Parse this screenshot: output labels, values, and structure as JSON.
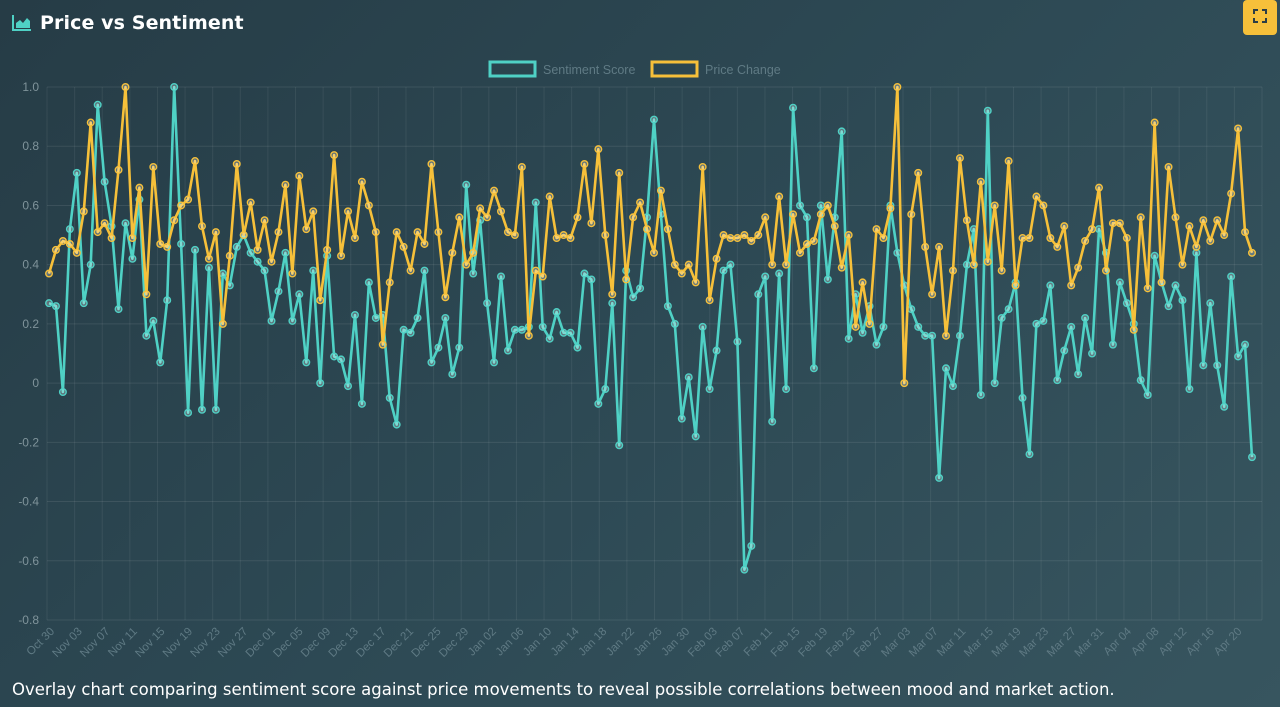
{
  "header": {
    "title": "Price vs Sentiment",
    "icon": "area-chart-icon"
  },
  "toolbar": {
    "fullscreen_icon": "fullscreen-icon"
  },
  "caption": "Overlay chart comparing sentiment score against price movements to reveal possible correlations between mood and market action.",
  "colors": {
    "sentiment": "#4fd1c5",
    "price": "#f6c03a",
    "accent": "#f6c03a"
  },
  "chart_data": {
    "type": "line",
    "title": "",
    "xlabel": "",
    "ylabel": "",
    "ylim": [
      -0.8,
      1.0
    ],
    "yticks": [
      1.0,
      0.8,
      0.6,
      0.4,
      0.2,
      0,
      -0.2,
      -0.4,
      -0.6,
      -0.8
    ],
    "ytick_labels": [
      "1.0",
      "0.8",
      "0.6",
      "0.4",
      "0.2",
      "0",
      "-0.2",
      "-0.4",
      "-0.6",
      "-0.8"
    ],
    "grid": true,
    "legend_position": "top-center",
    "x_tick_labels": [
      "Oct 30",
      "Nov 03",
      "Nov 07",
      "Nov 11",
      "Nov 15",
      "Nov 19",
      "Nov 23",
      "Nov 27",
      "Dec 01",
      "Dec 05",
      "Dec 09",
      "Dec 13",
      "Dec 17",
      "Dec 21",
      "Dec 25",
      "Dec 29",
      "Jan 02",
      "Jan 06",
      "Jan 10",
      "Jan 14",
      "Jan 18",
      "Jan 22",
      "Jan 26",
      "Jan 30",
      "Feb 03",
      "Feb 07",
      "Feb 11",
      "Feb 15",
      "Feb 19",
      "Feb 23",
      "Feb 27",
      "Mar 03",
      "Mar 07",
      "Mar 11",
      "Mar 15",
      "Mar 19",
      "Mar 23",
      "Mar 27",
      "Mar 31",
      "Apr 04",
      "Apr 08",
      "Apr 12",
      "Apr 16",
      "Apr 20"
    ],
    "series": [
      {
        "name": "Sentiment Score",
        "color": "#4fd1c5",
        "values": [
          0.27,
          0.26,
          -0.03,
          0.52,
          0.71,
          0.27,
          0.4,
          0.94,
          0.68,
          0.53,
          0.25,
          0.54,
          0.42,
          0.62,
          0.16,
          0.21,
          0.07,
          0.28,
          1.0,
          0.47,
          -0.1,
          0.45,
          -0.09,
          0.39,
          -0.09,
          0.37,
          0.33,
          0.46,
          0.5,
          0.44,
          0.41,
          0.38,
          0.21,
          0.31,
          0.44,
          0.21,
          0.3,
          0.07,
          0.38,
          0.0,
          0.43,
          0.09,
          0.08,
          -0.01,
          0.23,
          -0.07,
          0.34,
          0.22,
          0.23,
          -0.05,
          -0.14,
          0.18,
          0.17,
          0.22,
          0.38,
          0.07,
          0.12,
          0.22,
          0.03,
          0.12,
          0.67,
          0.37,
          0.55,
          0.27,
          0.07,
          0.36,
          0.11,
          0.18,
          0.18,
          0.19,
          0.61,
          0.19,
          0.15,
          0.24,
          0.17,
          0.17,
          0.12,
          0.37,
          0.35,
          -0.07,
          -0.02,
          0.27,
          -0.21,
          0.38,
          0.29,
          0.32,
          0.56,
          0.89,
          0.57,
          0.26,
          0.2,
          -0.12,
          0.02,
          -0.18,
          0.19,
          -0.02,
          0.11,
          0.38,
          0.4,
          0.14,
          -0.63,
          -0.55,
          0.3,
          0.36,
          -0.13,
          0.37,
          -0.02,
          0.93,
          0.6,
          0.56,
          0.05,
          0.6,
          0.35,
          0.56,
          0.85,
          0.15,
          0.3,
          0.17,
          0.26,
          0.13,
          0.19,
          0.6,
          0.44,
          0.33,
          0.25,
          0.19,
          0.16,
          0.16,
          -0.32,
          0.05,
          -0.01,
          0.16,
          0.4,
          0.52,
          -0.04,
          0.92,
          0.0,
          0.22,
          0.25,
          0.34,
          -0.05,
          -0.24,
          0.2,
          0.21,
          0.33,
          0.01,
          0.11,
          0.19,
          0.03,
          0.22,
          0.1,
          0.52,
          0.44,
          0.13,
          0.34,
          0.27,
          0.2,
          0.01,
          -0.04,
          0.43,
          0.34,
          0.26,
          0.33,
          0.28,
          -0.02,
          0.44,
          0.06,
          0.27,
          0.06,
          -0.08,
          0.36,
          0.09,
          0.13,
          -0.25
        ]
      },
      {
        "name": "Price Change",
        "color": "#f6c03a",
        "values": [
          0.37,
          0.45,
          0.48,
          0.47,
          0.44,
          0.58,
          0.88,
          0.51,
          0.54,
          0.49,
          0.72,
          1.0,
          0.49,
          0.66,
          0.3,
          0.73,
          0.47,
          0.46,
          0.55,
          0.6,
          0.62,
          0.75,
          0.53,
          0.42,
          0.51,
          0.2,
          0.43,
          0.74,
          0.5,
          0.61,
          0.45,
          0.55,
          0.41,
          0.51,
          0.67,
          0.37,
          0.7,
          0.52,
          0.58,
          0.28,
          0.45,
          0.77,
          0.43,
          0.58,
          0.49,
          0.68,
          0.6,
          0.51,
          0.13,
          0.34,
          0.51,
          0.46,
          0.38,
          0.51,
          0.47,
          0.74,
          0.51,
          0.29,
          0.44,
          0.56,
          0.4,
          0.44,
          0.59,
          0.56,
          0.65,
          0.58,
          0.51,
          0.5,
          0.73,
          0.16,
          0.38,
          0.36,
          0.63,
          0.49,
          0.5,
          0.49,
          0.56,
          0.74,
          0.54,
          0.79,
          0.5,
          0.3,
          0.71,
          0.35,
          0.56,
          0.61,
          0.52,
          0.44,
          0.65,
          0.52,
          0.4,
          0.37,
          0.4,
          0.34,
          0.73,
          0.28,
          0.42,
          0.5,
          0.49,
          0.49,
          0.5,
          0.48,
          0.5,
          0.56,
          0.4,
          0.63,
          0.4,
          0.57,
          0.44,
          0.47,
          0.48,
          0.57,
          0.6,
          0.53,
          0.39,
          0.5,
          0.19,
          0.34,
          0.2,
          0.52,
          0.49,
          0.59,
          1.0,
          0.0,
          0.57,
          0.71,
          0.46,
          0.3,
          0.46,
          0.16,
          0.38,
          0.76,
          0.55,
          0.4,
          0.68,
          0.41,
          0.6,
          0.38,
          0.75,
          0.33,
          0.49,
          0.49,
          0.63,
          0.6,
          0.49,
          0.46,
          0.53,
          0.33,
          0.39,
          0.48,
          0.52,
          0.66,
          0.38,
          0.54,
          0.54,
          0.49,
          0.18,
          0.56,
          0.32,
          0.88,
          0.34,
          0.73,
          0.56,
          0.4,
          0.53,
          0.46,
          0.55,
          0.48,
          0.55,
          0.5,
          0.64,
          0.86,
          0.51,
          0.44
        ]
      }
    ]
  }
}
